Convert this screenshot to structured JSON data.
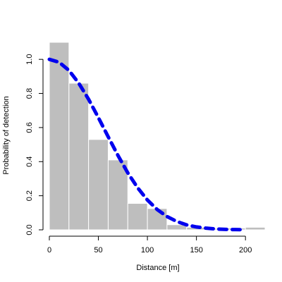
{
  "chart_data": {
    "type": "bar",
    "title": "",
    "xlabel": "Distance [m]",
    "ylabel": "Probability of detection",
    "xlim": [
      0,
      220
    ],
    "ylim": [
      0,
      1.1
    ],
    "x_ticks": [
      0,
      50,
      100,
      150,
      200
    ],
    "y_ticks": [
      0.0,
      0.2,
      0.4,
      0.6,
      0.8,
      1.0
    ],
    "x_tick_labels": [
      "0",
      "50",
      "100",
      "150",
      "200"
    ],
    "y_tick_labels": [
      "0.0",
      "0.2",
      "0.4",
      "0.6",
      "0.8",
      "1.0"
    ],
    "grid": false,
    "histogram": {
      "bins": [
        {
          "start": 0,
          "end": 20,
          "value": 1.1
        },
        {
          "start": 20,
          "end": 40,
          "value": 0.86
        },
        {
          "start": 40,
          "end": 60,
          "value": 0.53
        },
        {
          "start": 60,
          "end": 80,
          "value": 0.41
        },
        {
          "start": 80,
          "end": 100,
          "value": 0.155
        },
        {
          "start": 100,
          "end": 120,
          "value": 0.125
        },
        {
          "start": 120,
          "end": 140,
          "value": 0.03
        },
        {
          "start": 140,
          "end": 160,
          "value": 0.015
        },
        {
          "start": 160,
          "end": 180,
          "value": 0.008
        },
        {
          "start": 180,
          "end": 200,
          "value": 0.01
        },
        {
          "start": 200,
          "end": 220,
          "value": 0.015
        }
      ],
      "color": "#bebebe"
    },
    "detection_curve": {
      "x": [
        0,
        10,
        20,
        30,
        40,
        50,
        60,
        70,
        80,
        90,
        100,
        110,
        120,
        130,
        140,
        150,
        160,
        170,
        180,
        190,
        200
      ],
      "y": [
        1.0,
        0.983,
        0.935,
        0.86,
        0.766,
        0.658,
        0.546,
        0.436,
        0.334,
        0.247,
        0.175,
        0.119,
        0.078,
        0.049,
        0.029,
        0.017,
        0.0096,
        0.0051,
        0.0026,
        0.0013,
        0.0006
      ],
      "color": "#0000ee",
      "style": "dashed"
    }
  }
}
